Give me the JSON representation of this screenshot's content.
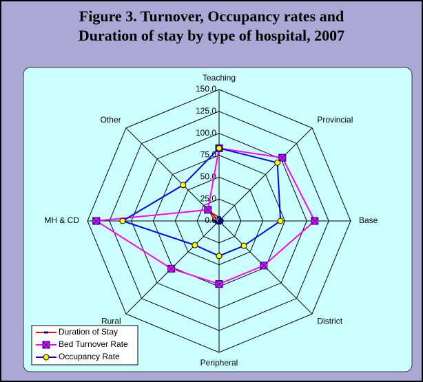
{
  "chart_data": {
    "type": "radar",
    "title": "Figure 3. Turnover, Occupancy rates and Duration of stay by type of hospital, 2007",
    "categories": [
      "Teaching",
      "Provincial",
      "Base",
      "District",
      "Peripheral",
      "Rural",
      "MH & CD",
      "Other"
    ],
    "series": [
      {
        "name": "Duration of Stay",
        "color": "#ff0000",
        "marker_color": "#000080",
        "values": [
          4,
          3,
          3,
          3,
          3,
          3,
          5,
          15
        ]
      },
      {
        "name": "Bed Turnover Rate",
        "color": "#ff00ff",
        "marker_color": "#ff00ff",
        "values": [
          83,
          102,
          109,
          72,
          72,
          77,
          140,
          18
        ]
      },
      {
        "name": "Occupancy Rate",
        "color": "#0000ff",
        "marker_color": "#ffff00",
        "values": [
          83,
          94,
          70,
          40,
          40,
          39,
          110,
          58
        ]
      }
    ],
    "ylim": [
      0,
      150
    ],
    "yticks": [
      {
        "value": 0,
        "label": "0.0"
      },
      {
        "value": 25,
        "label": "25.0"
      },
      {
        "value": 50,
        "label": "50.0"
      },
      {
        "value": 75,
        "label": "75.0"
      },
      {
        "value": 100,
        "label": "100.0"
      },
      {
        "value": 125,
        "label": "125.0"
      },
      {
        "value": 150,
        "label": "150.0"
      }
    ],
    "grid": true
  }
}
